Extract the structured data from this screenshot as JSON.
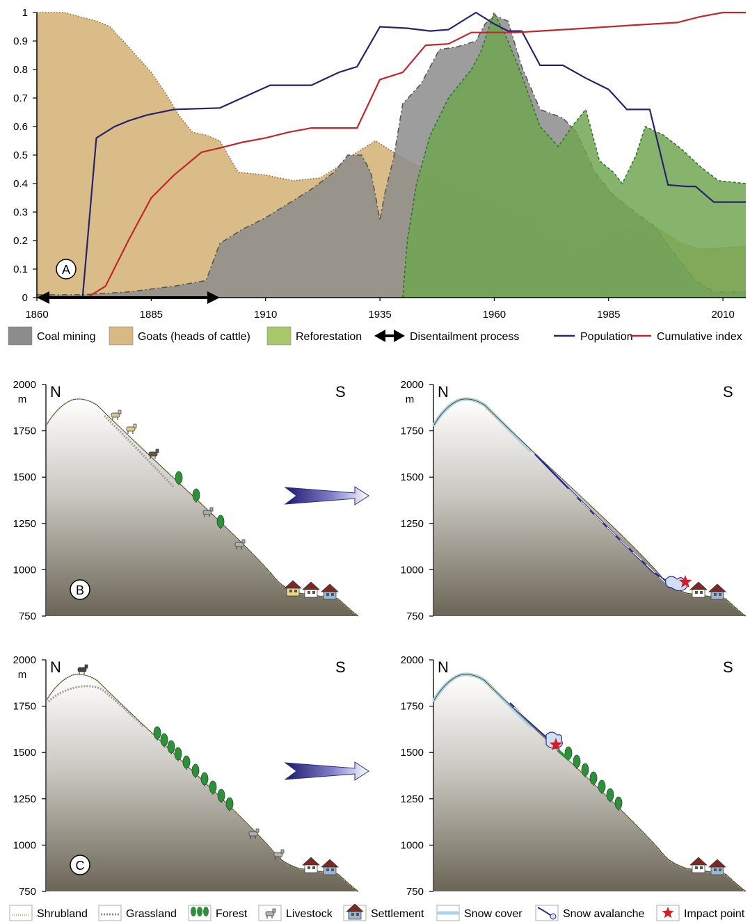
{
  "chart_data": {
    "type": "area",
    "x": [
      1860,
      1861,
      1864,
      1866,
      1869,
      1871,
      1874,
      1877,
      1880,
      1883,
      1885,
      1888,
      1890,
      1894,
      1898,
      1900,
      1904,
      1908,
      1912,
      1916,
      1920,
      1926,
      1928,
      1933,
      1935,
      1937,
      1940,
      1942,
      1945,
      1948,
      1951,
      1954,
      1956,
      1958,
      1960,
      1962,
      1964,
      1966,
      1968,
      1970,
      1972,
      1974,
      1976,
      1978,
      1980,
      1983,
      1986,
      1988,
      1991,
      1994,
      1997,
      2000,
      2002,
      2004,
      2006,
      2008,
      2010,
      2012,
      2014,
      2015
    ],
    "xticks": [
      "1860",
      "1885",
      "1910",
      "1935",
      "1960",
      "1985",
      "2010"
    ],
    "xtick_values": [
      1860,
      1885,
      1910,
      1935,
      1960,
      1985,
      2010
    ],
    "yticks": [
      "0",
      "0.1",
      "0.2",
      "0.3",
      "0.4",
      "0.5",
      "0.6",
      "0.7",
      "0.8",
      "0.9",
      "1"
    ],
    "ylim": [
      0,
      1
    ],
    "xlim": [
      1860,
      2015
    ],
    "panel_label": "A",
    "series": [
      {
        "name": "Goats (heads of cattle)",
        "kind": "area",
        "color": "#d8b883",
        "points": [
          [
            1860,
            1.0
          ],
          [
            1866,
            1.0
          ],
          [
            1873,
            0.97
          ],
          [
            1876,
            0.95
          ],
          [
            1880,
            0.88
          ],
          [
            1885,
            0.79
          ],
          [
            1888,
            0.72
          ],
          [
            1891,
            0.64
          ],
          [
            1894,
            0.58
          ],
          [
            1897,
            0.57
          ],
          [
            1900,
            0.55
          ],
          [
            1904,
            0.44
          ],
          [
            1910,
            0.43
          ],
          [
            1916,
            0.41
          ],
          [
            1922,
            0.42
          ],
          [
            1926,
            0.46
          ],
          [
            1928,
            0.49
          ],
          [
            1930,
            0.51
          ],
          [
            1934,
            0.55
          ],
          [
            1937,
            0.52
          ],
          [
            1940,
            0.49
          ],
          [
            1945,
            0.45
          ],
          [
            1950,
            0.4
          ],
          [
            1955,
            0.385
          ],
          [
            1960,
            0.35
          ],
          [
            1965,
            0.31
          ],
          [
            1970,
            0.26
          ],
          [
            1975,
            0.2
          ],
          [
            1977,
            0.16
          ],
          [
            1980,
            0.185
          ],
          [
            1985,
            0.23
          ],
          [
            1990,
            0.24
          ],
          [
            1995,
            0.25
          ],
          [
            1998,
            0.22
          ],
          [
            2001,
            0.19
          ],
          [
            2005,
            0.17
          ],
          [
            2010,
            0.175
          ],
          [
            2015,
            0.18
          ]
        ]
      },
      {
        "name": "Coal mining",
        "kind": "area",
        "color": "#8c8c8c",
        "points": [
          [
            1860,
            0.01
          ],
          [
            1870,
            0.01
          ],
          [
            1880,
            0.02
          ],
          [
            1890,
            0.04
          ],
          [
            1897,
            0.06
          ],
          [
            1900,
            0.19
          ],
          [
            1905,
            0.24
          ],
          [
            1910,
            0.28
          ],
          [
            1915,
            0.33
          ],
          [
            1920,
            0.38
          ],
          [
            1925,
            0.44
          ],
          [
            1928,
            0.5
          ],
          [
            1931,
            0.5
          ],
          [
            1933,
            0.44
          ],
          [
            1934,
            0.36
          ],
          [
            1935,
            0.27
          ],
          [
            1936,
            0.36
          ],
          [
            1938,
            0.49
          ],
          [
            1940,
            0.68
          ],
          [
            1944,
            0.75
          ],
          [
            1948,
            0.87
          ],
          [
            1952,
            0.88
          ],
          [
            1956,
            0.9
          ],
          [
            1958,
            0.96
          ],
          [
            1960,
            0.99
          ],
          [
            1963,
            0.97
          ],
          [
            1966,
            0.81
          ],
          [
            1970,
            0.66
          ],
          [
            1975,
            0.63
          ],
          [
            1978,
            0.58
          ],
          [
            1982,
            0.44
          ],
          [
            1986,
            0.36
          ],
          [
            1990,
            0.31
          ],
          [
            1995,
            0.25
          ],
          [
            2000,
            0.14
          ],
          [
            2004,
            0.06
          ],
          [
            2008,
            0.02
          ],
          [
            2015,
            0.02
          ]
        ]
      },
      {
        "name": "Reforestation",
        "kind": "area",
        "color": "#a8c86a",
        "points": [
          [
            1940,
            0.0
          ],
          [
            1941,
            0.2
          ],
          [
            1943,
            0.4
          ],
          [
            1946,
            0.57
          ],
          [
            1950,
            0.7
          ],
          [
            1955,
            0.8
          ],
          [
            1957,
            0.86
          ],
          [
            1960,
            1.0
          ],
          [
            1963,
            0.9
          ],
          [
            1966,
            0.78
          ],
          [
            1970,
            0.6
          ],
          [
            1974,
            0.53
          ],
          [
            1977,
            0.6
          ],
          [
            1980,
            0.66
          ],
          [
            1983,
            0.48
          ],
          [
            1986,
            0.44
          ],
          [
            1988,
            0.4
          ],
          [
            1991,
            0.5
          ],
          [
            1993,
            0.6
          ],
          [
            1997,
            0.57
          ],
          [
            2001,
            0.52
          ],
          [
            2005,
            0.46
          ],
          [
            2009,
            0.41
          ],
          [
            2015,
            0.4
          ]
        ]
      },
      {
        "name": "Population",
        "kind": "line",
        "color": "#26236b",
        "points": [
          [
            1860,
            0.0
          ],
          [
            1870,
            0.0
          ],
          [
            1873,
            0.56
          ],
          [
            1877,
            0.6
          ],
          [
            1880,
            0.62
          ],
          [
            1884,
            0.64
          ],
          [
            1890,
            0.66
          ],
          [
            1900,
            0.665
          ],
          [
            1911,
            0.745
          ],
          [
            1920,
            0.745
          ],
          [
            1926,
            0.79
          ],
          [
            1930,
            0.81
          ],
          [
            1935,
            0.95
          ],
          [
            1941,
            0.945
          ],
          [
            1946,
            0.935
          ],
          [
            1950,
            0.94
          ],
          [
            1956,
            1.0
          ],
          [
            1960,
            0.96
          ],
          [
            1963,
            0.935
          ],
          [
            1966,
            0.935
          ],
          [
            1970,
            0.815
          ],
          [
            1975,
            0.815
          ],
          [
            1980,
            0.77
          ],
          [
            1985,
            0.73
          ],
          [
            1989,
            0.66
          ],
          [
            1994,
            0.66
          ],
          [
            1998,
            0.395
          ],
          [
            2002,
            0.39
          ],
          [
            2004,
            0.39
          ],
          [
            2008,
            0.335
          ],
          [
            2015,
            0.335
          ]
        ]
      },
      {
        "name": "Cumulative index",
        "kind": "line",
        "color": "#c0262b",
        "points": [
          [
            1860,
            0.0
          ],
          [
            1871,
            0.0
          ],
          [
            1875,
            0.04
          ],
          [
            1880,
            0.2
          ],
          [
            1885,
            0.35
          ],
          [
            1890,
            0.43
          ],
          [
            1896,
            0.51
          ],
          [
            1900,
            0.525
          ],
          [
            1905,
            0.545
          ],
          [
            1910,
            0.56
          ],
          [
            1915,
            0.58
          ],
          [
            1920,
            0.595
          ],
          [
            1925,
            0.595
          ],
          [
            1930,
            0.595
          ],
          [
            1935,
            0.765
          ],
          [
            1940,
            0.79
          ],
          [
            1945,
            0.885
          ],
          [
            1950,
            0.89
          ],
          [
            1955,
            0.93
          ],
          [
            1960,
            0.93
          ],
          [
            1965,
            0.93
          ],
          [
            1970,
            0.935
          ],
          [
            1975,
            0.94
          ],
          [
            1980,
            0.945
          ],
          [
            1985,
            0.95
          ],
          [
            1990,
            0.955
          ],
          [
            1995,
            0.96
          ],
          [
            2000,
            0.965
          ],
          [
            2005,
            0.985
          ],
          [
            2010,
            1.0
          ],
          [
            2015,
            1.0
          ]
        ]
      }
    ],
    "disentailment": {
      "from": 1860,
      "to": 1900
    }
  },
  "legend_top": [
    {
      "label": "Coal mining",
      "swatch": "#8c8c8c",
      "kind": "box"
    },
    {
      "label": "Goats (heads of cattle)",
      "swatch": "#d8b883",
      "kind": "box"
    },
    {
      "label": "Reforestation",
      "swatch": "#a8c86a",
      "kind": "box"
    },
    {
      "label": "Disentailment process",
      "swatch": "#000000",
      "kind": "arrow"
    },
    {
      "label": "Population",
      "swatch": "#26236b",
      "kind": "line"
    },
    {
      "label": "Cumulative index",
      "swatch": "#c0262b",
      "kind": "line"
    }
  ],
  "profiles": {
    "elev_ticks": [
      "2000",
      "1750",
      "1500",
      "1250",
      "1000",
      "750"
    ],
    "elev_unit": "m",
    "north": "N",
    "south": "S",
    "panel_b": "B",
    "panel_c": "C"
  },
  "legend_bottom": [
    {
      "label": "Shrubland",
      "icon": "shrubland-icon"
    },
    {
      "label": "Grassland",
      "icon": "grassland-icon"
    },
    {
      "label": "Forest",
      "icon": "forest-icon"
    },
    {
      "label": "Livestock",
      "icon": "livestock-icon"
    },
    {
      "label": "Settlement",
      "icon": "settlement-icon"
    },
    {
      "label": "Snow cover",
      "icon": "snow-cover-icon"
    },
    {
      "label": "Snow avalanche",
      "icon": "snow-avalanche-icon"
    },
    {
      "label": "Impact point",
      "icon": "impact-point-icon"
    }
  ],
  "colors": {
    "mountain_top": "#ffffff",
    "mountain_bottom": "#6e6858",
    "tree": "#2f8f3a",
    "snow": "#a9d4ea",
    "avalanche": "#2a2a8a",
    "star": "#d21f26"
  }
}
